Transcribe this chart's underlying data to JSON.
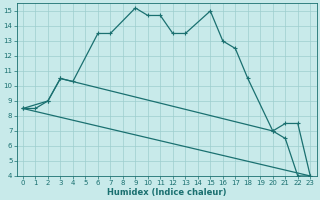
{
  "xlabel": "Humidex (Indice chaleur)",
  "background_color": "#c8eaea",
  "grid_color": "#9dcece",
  "line_color": "#1a7070",
  "xlim": [
    -0.5,
    23.5
  ],
  "ylim": [
    4,
    15.5
  ],
  "xticks": [
    0,
    1,
    2,
    3,
    4,
    5,
    6,
    7,
    8,
    9,
    10,
    11,
    12,
    13,
    14,
    15,
    16,
    17,
    18,
    19,
    20,
    21,
    22,
    23
  ],
  "yticks": [
    4,
    5,
    6,
    7,
    8,
    9,
    10,
    11,
    12,
    13,
    14,
    15
  ],
  "curve1_x": [
    0,
    1,
    2,
    3,
    4,
    6,
    7,
    9,
    10,
    11,
    12,
    13,
    15,
    16,
    17,
    18,
    20,
    21,
    22,
    23
  ],
  "curve1_y": [
    8.5,
    8.5,
    9.0,
    10.5,
    10.3,
    13.5,
    13.5,
    15.2,
    14.7,
    14.7,
    13.5,
    13.5,
    15.0,
    13.0,
    12.5,
    10.5,
    7.0,
    6.5,
    4.0,
    4.0
  ],
  "curve2_x": [
    0,
    2,
    3,
    20,
    21,
    22,
    23
  ],
  "curve2_y": [
    8.5,
    9.0,
    10.5,
    7.0,
    7.5,
    7.5,
    4.0
  ],
  "curve3_x": [
    0,
    23
  ],
  "curve3_y": [
    8.5,
    4.0
  ]
}
